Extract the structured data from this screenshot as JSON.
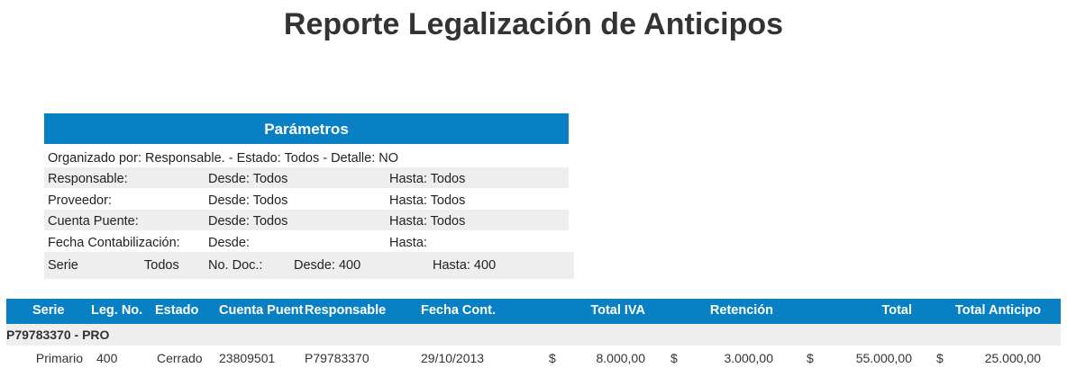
{
  "header": {
    "title": "Reporte Legalización de Anticipos"
  },
  "parameters": {
    "title": "Parámetros",
    "organized": "Organizado por:  Responsable. - Estado: Todos - Detalle: NO",
    "rows": [
      [
        "Responsable:",
        "Desde: Todos",
        "Hasta: Todos"
      ],
      [
        "Proveedor:",
        "Desde: Todos",
        "Hasta: Todos"
      ],
      [
        "Cuenta Puente:",
        "Desde: Todos",
        "Hasta: Todos"
      ],
      [
        "Fecha Contabilización:",
        "Desde:",
        "Hasta:"
      ]
    ],
    "serie": [
      "Serie",
      "Todos",
      "No. Doc.:",
      "Desde: 400",
      "Hasta: 400"
    ]
  },
  "table": {
    "columns": [
      "Serie",
      "Leg. No.",
      "Estado",
      "Cuenta Puent",
      "Responsable",
      "Fecha Cont.",
      "Total IVA",
      "Retención",
      "Total",
      "Total Anticipo"
    ],
    "group": "P79783370 - PRO",
    "rows": [
      [
        "Primario",
        "400",
        "Cerrado",
        "23809501",
        "P79783370",
        "29/10/2013",
        "$",
        "8.000,00",
        "$",
        "3.000,00",
        "$",
        "55.000,00",
        "$",
        "25.000,00"
      ]
    ]
  }
}
